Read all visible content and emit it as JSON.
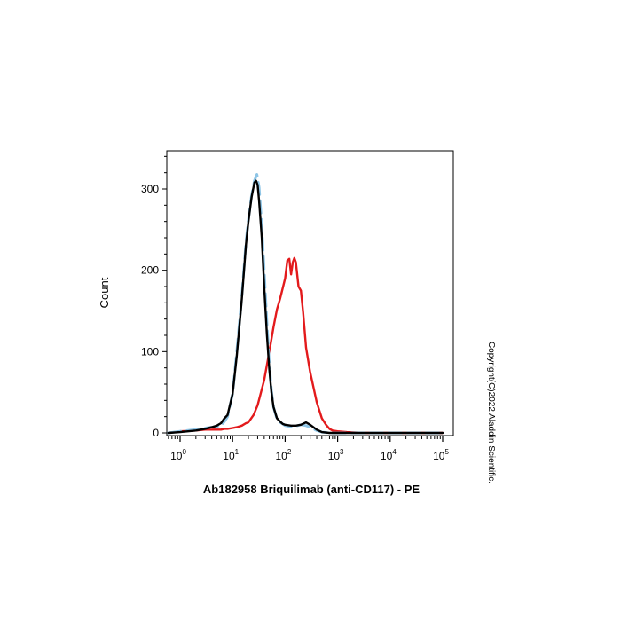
{
  "chart_data": {
    "type": "line",
    "title": "",
    "xlabel": "Ab182958 Briquilimab (anti-CD117) - PE",
    "ylabel": "Count",
    "xscale": "log",
    "xlim": [
      0.5,
      100000
    ],
    "ylim": [
      0,
      340
    ],
    "grid": false,
    "legend": "none",
    "x_ticks": [
      {
        "value": 1,
        "base": "10",
        "exp": "0"
      },
      {
        "value": 10,
        "base": "10",
        "exp": "1"
      },
      {
        "value": 100,
        "base": "10",
        "exp": "2"
      },
      {
        "value": 1000,
        "base": "10",
        "exp": "3"
      },
      {
        "value": 10000,
        "base": "10",
        "exp": "4"
      },
      {
        "value": 100000,
        "base": "10",
        "exp": "5"
      }
    ],
    "y_ticks": [
      0,
      100,
      200,
      300
    ],
    "series": [
      {
        "color": "#e31a1c",
        "dash": false,
        "x": [
          0.6,
          1,
          2,
          3,
          4,
          5,
          6,
          7,
          8,
          10,
          12,
          15,
          18,
          20,
          25,
          30,
          40,
          50,
          60,
          70,
          80,
          90,
          100,
          110,
          120,
          130,
          140,
          150,
          160,
          180,
          200,
          220,
          250,
          300,
          350,
          400,
          500,
          600,
          700,
          800,
          1000,
          1500,
          3000,
          10000,
          100000
        ],
        "y": [
          0,
          2,
          3,
          4,
          4,
          4,
          4,
          5,
          5,
          6,
          7,
          9,
          12,
          13,
          22,
          34,
          65,
          100,
          130,
          152,
          165,
          178,
          190,
          212,
          214,
          195,
          210,
          215,
          210,
          180,
          175,
          148,
          105,
          75,
          55,
          38,
          18,
          10,
          5,
          3,
          2,
          1,
          0,
          0,
          0
        ]
      },
      {
        "color": "#8ec5e6",
        "dash": true,
        "x": [
          0.6,
          1,
          2,
          3,
          4,
          5,
          6,
          7,
          8,
          10,
          12,
          15,
          18,
          20,
          23,
          26,
          29,
          32,
          36,
          40,
          45,
          50,
          55,
          60,
          70,
          80,
          90,
          100,
          120,
          150,
          200,
          250,
          300,
          400,
          500,
          700,
          1000,
          100000
        ],
        "y": [
          0,
          2,
          4,
          6,
          7,
          8,
          9,
          14,
          20,
          48,
          100,
          168,
          235,
          262,
          292,
          310,
          318,
          302,
          255,
          200,
          135,
          85,
          52,
          32,
          17,
          13,
          11,
          9,
          8,
          8,
          10,
          9,
          7,
          3,
          1,
          0,
          0,
          0
        ]
      },
      {
        "color": "#000000",
        "dash": false,
        "x": [
          0.6,
          1,
          2,
          3,
          4,
          5,
          6,
          7,
          8,
          10,
          12,
          15,
          18,
          20,
          23,
          26,
          28,
          30,
          32,
          36,
          40,
          45,
          50,
          55,
          60,
          70,
          80,
          90,
          100,
          130,
          160,
          200,
          250,
          300,
          400,
          500,
          700,
          1000,
          100000
        ],
        "y": [
          0,
          1,
          3,
          5,
          7,
          9,
          12,
          18,
          22,
          48,
          95,
          165,
          232,
          260,
          290,
          308,
          310,
          305,
          285,
          240,
          180,
          120,
          78,
          50,
          32,
          18,
          14,
          11,
          10,
          9,
          9,
          10,
          13,
          10,
          4,
          1,
          0,
          0,
          0
        ]
      }
    ]
  },
  "watermark": "Copyright(C)2022 Aladdin Scientific."
}
